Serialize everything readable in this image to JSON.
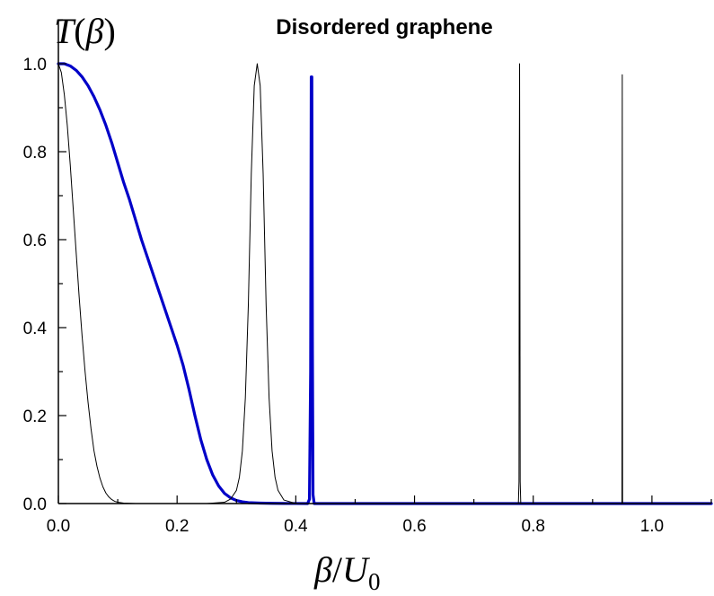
{
  "chart_data": {
    "type": "line",
    "title": "Disordered graphene",
    "ylabel": {
      "main": "T",
      "open": "(",
      "var": "β",
      "close": ")"
    },
    "xlabel": {
      "num": "β",
      "slash": "/",
      "den": "U",
      "sub": "0"
    },
    "xlim": [
      0.0,
      1.1
    ],
    "ylim": [
      0.0,
      1.1
    ],
    "xticks": [
      {
        "value": 0.0,
        "label": "0.0"
      },
      {
        "value": 0.2,
        "label": "0.2"
      },
      {
        "value": 0.4,
        "label": "0.4"
      },
      {
        "value": 0.6,
        "label": "0.6"
      },
      {
        "value": 0.8,
        "label": "0.8"
      },
      {
        "value": 1.0,
        "label": "1.0"
      }
    ],
    "yticks": [
      {
        "value": 0.0,
        "label": "0.0"
      },
      {
        "value": 0.2,
        "label": "0.2"
      },
      {
        "value": 0.4,
        "label": "0.4"
      },
      {
        "value": 0.6,
        "label": "0.6"
      },
      {
        "value": 0.8,
        "label": "0.8"
      },
      {
        "value": 1.0,
        "label": "1.0"
      }
    ],
    "grid": false,
    "legend": "none",
    "series": [
      {
        "color": "#0000c8",
        "style": "thick",
        "x": [
          0.0,
          0.01,
          0.02,
          0.03,
          0.04,
          0.05,
          0.06,
          0.07,
          0.08,
          0.09,
          0.1,
          0.11,
          0.12,
          0.13,
          0.14,
          0.15,
          0.16,
          0.17,
          0.18,
          0.19,
          0.2,
          0.21,
          0.22,
          0.23,
          0.24,
          0.25,
          0.26,
          0.27,
          0.28,
          0.29,
          0.3,
          0.31,
          0.32,
          0.34,
          0.36,
          0.38,
          0.4,
          0.42,
          0.423,
          0.425,
          0.426,
          0.427,
          0.428,
          0.429,
          0.431,
          0.434,
          0.44,
          0.5,
          0.6,
          0.7,
          0.8,
          0.9,
          1.0,
          1.1
        ],
        "y": [
          1.0,
          1.0,
          0.995,
          0.985,
          0.97,
          0.95,
          0.925,
          0.895,
          0.86,
          0.82,
          0.775,
          0.73,
          0.69,
          0.645,
          0.6,
          0.56,
          0.52,
          0.48,
          0.44,
          0.4,
          0.36,
          0.315,
          0.26,
          0.2,
          0.145,
          0.1,
          0.065,
          0.04,
          0.023,
          0.013,
          0.007,
          0.004,
          0.002,
          0.001,
          0.0005,
          0.0002,
          0.0001,
          0.0,
          0.01,
          0.3,
          0.97,
          0.97,
          0.35,
          0.02,
          0.0,
          0.0,
          0.0,
          0.0,
          0.0,
          0.0,
          0.0,
          0.0,
          0.0,
          0.0
        ]
      },
      {
        "color": "#000000",
        "style": "thin",
        "x": [
          0.0,
          0.005,
          0.01,
          0.015,
          0.02,
          0.025,
          0.03,
          0.035,
          0.04,
          0.045,
          0.05,
          0.055,
          0.06,
          0.065,
          0.07,
          0.075,
          0.08,
          0.085,
          0.09,
          0.095,
          0.1,
          0.11,
          0.12,
          0.13,
          0.15,
          0.2,
          0.25
        ],
        "y": [
          1.0,
          0.98,
          0.93,
          0.86,
          0.77,
          0.67,
          0.57,
          0.47,
          0.38,
          0.3,
          0.23,
          0.17,
          0.12,
          0.085,
          0.058,
          0.038,
          0.024,
          0.015,
          0.009,
          0.005,
          0.003,
          0.001,
          0.0004,
          0.0001,
          0.0,
          0.0,
          0.0
        ]
      },
      {
        "color": "#000000",
        "style": "thin",
        "x": [
          0.25,
          0.28,
          0.29,
          0.3,
          0.305,
          0.31,
          0.315,
          0.32,
          0.325,
          0.33,
          0.335,
          0.34,
          0.345,
          0.35,
          0.355,
          0.36,
          0.365,
          0.37,
          0.38,
          0.4
        ],
        "y": [
          0.0,
          0.003,
          0.01,
          0.03,
          0.06,
          0.12,
          0.24,
          0.45,
          0.75,
          0.95,
          1.0,
          0.95,
          0.75,
          0.45,
          0.24,
          0.12,
          0.06,
          0.03,
          0.008,
          0.0
        ]
      },
      {
        "color": "#000000",
        "style": "hair",
        "x": [
          0.77,
          0.775,
          0.776,
          0.7765,
          0.777,
          0.7775,
          0.778,
          0.779,
          0.785
        ],
        "y": [
          0.0,
          0.0,
          0.05,
          0.75,
          1.0,
          0.6,
          0.05,
          0.0,
          0.0
        ]
      },
      {
        "color": "#000000",
        "style": "hair",
        "x": [
          0.945,
          0.9495,
          0.95,
          0.9505,
          0.955
        ],
        "y": [
          0.0,
          0.0,
          0.975,
          0.0,
          0.0
        ]
      }
    ]
  }
}
